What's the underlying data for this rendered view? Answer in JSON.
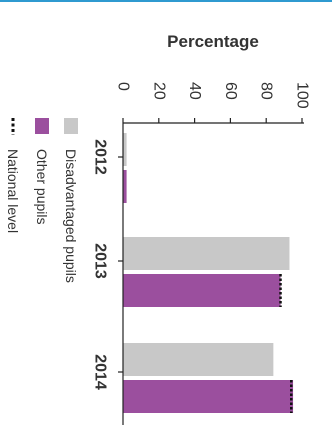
{
  "chart_data": {
    "type": "bar",
    "orientation": "horizontal",
    "categories": [
      "2012",
      "2013",
      "2014"
    ],
    "series": [
      {
        "name": "Disadvantaged pupils",
        "values": [
          2,
          93,
          84
        ],
        "color": "#c8c8c8"
      },
      {
        "name": "Other pupils",
        "values": [
          2,
          88,
          95
        ],
        "color": "#9b4f9e"
      }
    ],
    "national_level": {
      "name": "National level",
      "values": [
        null,
        88,
        94
      ]
    },
    "ylabel": "Percentage",
    "xlabel": "",
    "ylim": [
      0,
      100
    ],
    "ticks": [
      "0",
      "20",
      "40",
      "60",
      "80",
      "100"
    ],
    "grid": false,
    "legend_position": "left"
  }
}
